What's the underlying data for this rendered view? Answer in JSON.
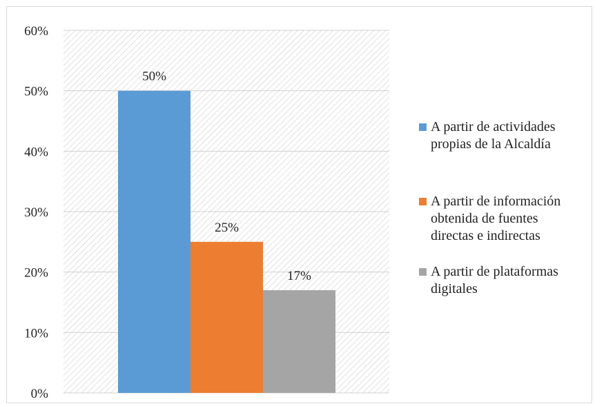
{
  "chart_data": {
    "type": "bar",
    "categories": [
      ""
    ],
    "series": [
      {
        "name": "A partir de actividades propias de la Alcaldía",
        "values": [
          50
        ],
        "label": "50%",
        "color": "#5B9BD5",
        "legend_lines": [
          "A partir de actividades",
          "propias de la Alcaldía"
        ]
      },
      {
        "name": "A partir de información obtenida de fuentes directas e indirectas",
        "values": [
          25
        ],
        "label": "25%",
        "color": "#ED7D31",
        "legend_lines": [
          "A partir de información",
          "obtenida de fuentes",
          "directas e indirectas"
        ]
      },
      {
        "name": "A partir de plataformas digitales",
        "values": [
          17
        ],
        "label": "17%",
        "color": "#A5A5A5",
        "legend_lines": [
          "A partir de plataformas",
          "digitales"
        ]
      }
    ],
    "y_ticks": [
      "0%",
      "10%",
      "20%",
      "30%",
      "40%",
      "50%",
      "60%"
    ],
    "ylim": [
      0,
      60
    ],
    "grid": true,
    "legend_position": "right",
    "title": "",
    "xlabel": "",
    "ylabel": ""
  }
}
